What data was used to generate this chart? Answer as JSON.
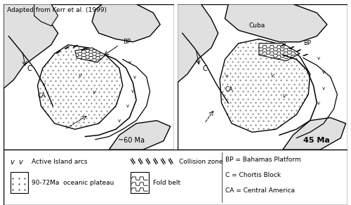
{
  "title": "Adapted from Kerr et al. (1999)",
  "panel1_label": "~60 Ma",
  "panel2_label": "45 Ma",
  "panel2_cuba_label": "Cuba",
  "legend_abbrevs": [
    "BP = Bahamas Platform",
    "C = Chortis Block",
    "CA = Central America"
  ],
  "bg_color": "#ffffff",
  "line_color": "#000000",
  "land_color": "#e0e0e0",
  "dot_color": "#555555"
}
